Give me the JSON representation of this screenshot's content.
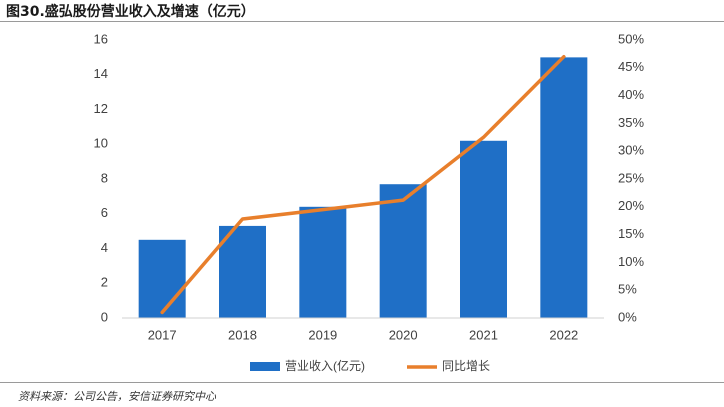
{
  "title": "图30.盛弘股份营业收入及增速（亿元）",
  "source": "资料来源：公司公告，安信证券研究中心",
  "colors": {
    "bar": "#1f6fc6",
    "line": "#e87f2c",
    "axis": "#d0d0d0",
    "text": "#404040"
  },
  "chart_data": {
    "type": "bar",
    "categories": [
      "2017",
      "2018",
      "2019",
      "2020",
      "2021",
      "2022"
    ],
    "series": [
      {
        "name": "营业收入(亿元)",
        "type": "bar",
        "axis": "left",
        "values": [
          4.5,
          5.3,
          6.4,
          7.7,
          10.2,
          15.0
        ]
      },
      {
        "name": "同比增长",
        "type": "line",
        "axis": "right",
        "values": [
          1.0,
          17.8,
          19.5,
          21.2,
          32.5,
          47.0
        ]
      }
    ],
    "ylim": [
      0,
      16
    ],
    "y_ticks": [
      "0",
      "2",
      "4",
      "6",
      "8",
      "10",
      "12",
      "14",
      "16"
    ],
    "y2lim": [
      0,
      50
    ],
    "y2_ticks": [
      "0%",
      "5%",
      "10%",
      "15%",
      "20%",
      "25%",
      "30%",
      "35%",
      "40%",
      "45%",
      "50%"
    ],
    "legend": [
      "营业收入(亿元)",
      "同比增长"
    ],
    "legend_position": "bottom"
  }
}
